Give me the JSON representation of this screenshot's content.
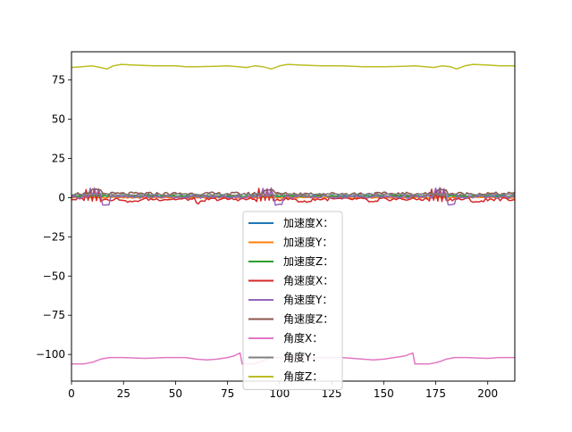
{
  "chart_data": {
    "type": "line",
    "title": "",
    "xlabel": "",
    "ylabel": "",
    "xlim": [
      0,
      213
    ],
    "ylim": [
      -117,
      93
    ],
    "x_ticks": [
      0,
      25,
      50,
      75,
      100,
      125,
      150,
      175,
      200
    ],
    "y_ticks": [
      -100,
      -75,
      -50,
      -25,
      0,
      25,
      50,
      75
    ],
    "grid": false,
    "legend_position": "lower center",
    "series": [
      {
        "name": "加速度X：",
        "color": "#1f77b4",
        "kind": "accx",
        "base": 0.0
      },
      {
        "name": "加速度Y：",
        "color": "#ff7f0e",
        "kind": "accy",
        "base": 0.5
      },
      {
        "name": "加速度Z：",
        "color": "#2ca02c",
        "kind": "accz",
        "base": 1.0
      },
      {
        "name": "角速度X：",
        "color": "#d62728",
        "kind": "gyrox",
        "base": 0.0
      },
      {
        "name": "角速度Y：",
        "color": "#9467bd",
        "kind": "gyroy",
        "base": 0.5
      },
      {
        "name": "角速度Z：",
        "color": "#8c564b",
        "kind": "gyroz",
        "base": 2.5
      },
      {
        "name": "角度X：",
        "color": "#e377c2",
        "kind": "anglex",
        "points": [
          [
            0,
            -106
          ],
          [
            6,
            -106
          ],
          [
            10,
            -105
          ],
          [
            14,
            -103
          ],
          [
            18,
            -102
          ],
          [
            25,
            -102
          ],
          [
            35,
            -102.5
          ],
          [
            45,
            -102
          ],
          [
            55,
            -102
          ],
          [
            60,
            -103
          ],
          [
            65,
            -103.5
          ],
          [
            70,
            -103
          ],
          [
            75,
            -102
          ],
          [
            78,
            -101
          ],
          [
            81,
            -99
          ],
          [
            82,
            -106
          ],
          [
            88,
            -106
          ],
          [
            92,
            -104
          ],
          [
            96,
            -102
          ],
          [
            100,
            -102
          ],
          [
            110,
            -102.5
          ],
          [
            120,
            -102
          ],
          [
            130,
            -102
          ],
          [
            140,
            -103
          ],
          [
            145,
            -103.5
          ],
          [
            150,
            -103
          ],
          [
            155,
            -102
          ],
          [
            160,
            -101
          ],
          [
            164,
            -99
          ],
          [
            165,
            -106
          ],
          [
            172,
            -106
          ],
          [
            176,
            -105
          ],
          [
            180,
            -103
          ],
          [
            184,
            -102
          ],
          [
            190,
            -102
          ],
          [
            200,
            -102.5
          ],
          [
            205,
            -102
          ],
          [
            213,
            -102
          ]
        ]
      },
      {
        "name": "角度Y：",
        "color": "#7f7f7f",
        "kind": "angley",
        "base": 1.5
      },
      {
        "name": "角度Z：",
        "color": "#bcbd22",
        "kind": "anglez",
        "points": [
          [
            0,
            83
          ],
          [
            5,
            83.5
          ],
          [
            10,
            84
          ],
          [
            14,
            83
          ],
          [
            17,
            82
          ],
          [
            20,
            84
          ],
          [
            24,
            85
          ],
          [
            30,
            84.5
          ],
          [
            40,
            84
          ],
          [
            50,
            84
          ],
          [
            55,
            83.5
          ],
          [
            60,
            83.5
          ],
          [
            70,
            83.8
          ],
          [
            75,
            84
          ],
          [
            80,
            83.5
          ],
          [
            84,
            83
          ],
          [
            88,
            84
          ],
          [
            92,
            83.5
          ],
          [
            96,
            82
          ],
          [
            100,
            84
          ],
          [
            104,
            85
          ],
          [
            110,
            84.5
          ],
          [
            120,
            84
          ],
          [
            130,
            84
          ],
          [
            140,
            83.5
          ],
          [
            150,
            83.5
          ],
          [
            160,
            83.8
          ],
          [
            165,
            84
          ],
          [
            170,
            83.5
          ],
          [
            174,
            83
          ],
          [
            178,
            84
          ],
          [
            182,
            83.5
          ],
          [
            185,
            82
          ],
          [
            189,
            84
          ],
          [
            193,
            85
          ],
          [
            200,
            84.5
          ],
          [
            206,
            84
          ],
          [
            213,
            84
          ]
        ]
      }
    ]
  }
}
